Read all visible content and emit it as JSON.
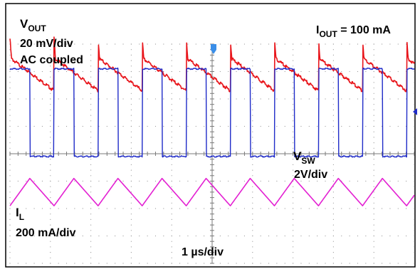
{
  "chart_data": {
    "type": "line",
    "title": "",
    "xlabel": "1 µs/div",
    "ylabel": "",
    "grid": true,
    "divisions": {
      "x": 10,
      "y": 8
    },
    "x_per_div_us": 1,
    "x_range_us": [
      0,
      10
    ],
    "switching_period_us": 1.09,
    "duty_cycle": 0.45,
    "series": [
      {
        "channel": "VOUT",
        "label_main": "V",
        "label_sub": "OUT",
        "scale": "20 mV/div",
        "coupling": "AC coupled",
        "color": "#e8141a",
        "waveform": "ripple",
        "ripple_pk_pk_mv": 24,
        "spike_mv": 14,
        "baseline_div": 6.9
      },
      {
        "channel": "VSW",
        "label_main": "V",
        "label_sub": "SW",
        "scale": "2V/div",
        "color": "#1f2bc8",
        "waveform": "square",
        "high_v": 6.4,
        "low_v": 0.0,
        "ground_div": 3.9
      },
      {
        "channel": "IL",
        "label_main": "I",
        "label_sub": "L",
        "scale": "200 mA/div",
        "color": "#e320d2",
        "waveform": "triangle",
        "ripple_pk_pk_ma": 200,
        "center_div": 2.6
      }
    ],
    "annotations": [
      {
        "main": "I",
        "sub": "OUT",
        "text": " = 100 mA",
        "position": "top-right"
      }
    ]
  }
}
